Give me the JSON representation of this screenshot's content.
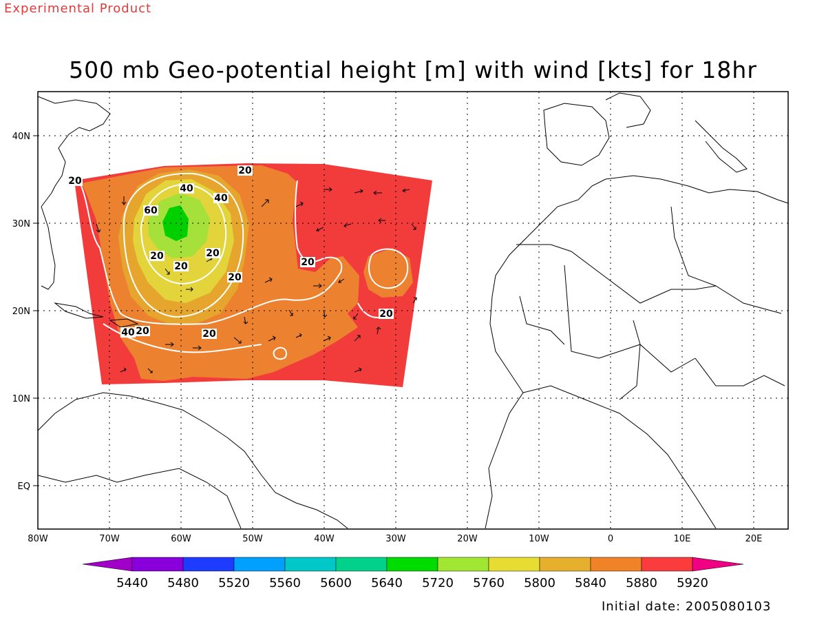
{
  "header": {
    "experimental": "Experimental Product",
    "title": "500 mb Geo-potential height [m] with wind [kts] for 18hr"
  },
  "map": {
    "lat_labels": [
      "40N",
      "30N",
      "20N",
      "10N",
      "EQ"
    ],
    "lon_labels": [
      "80W",
      "70W",
      "60W",
      "50W",
      "40W",
      "30W",
      "20W",
      "10W",
      "0",
      "10E",
      "20E"
    ],
    "contour_labels": [
      "20",
      "40",
      "40",
      "60",
      "20",
      "20",
      "20",
      "20",
      "20",
      "20",
      "40",
      "20",
      "20",
      "20"
    ]
  },
  "colorbar": {
    "labels": [
      "5440",
      "5480",
      "5520",
      "5560",
      "5600",
      "5640",
      "5720",
      "5760",
      "5800",
      "5840",
      "5880",
      "5920"
    ],
    "colors": [
      "#8a00dc",
      "#1e3cff",
      "#00a0ff",
      "#00c8c8",
      "#00d28c",
      "#00dc00",
      "#a0e632",
      "#e6dc32",
      "#e6af2d",
      "#f08228",
      "#fa3c3c"
    ],
    "low_arrow_color": "#a000c8",
    "high_arrow_color": "#f00082"
  },
  "footer": {
    "initial_date": "Initial date: 2005080103"
  }
}
